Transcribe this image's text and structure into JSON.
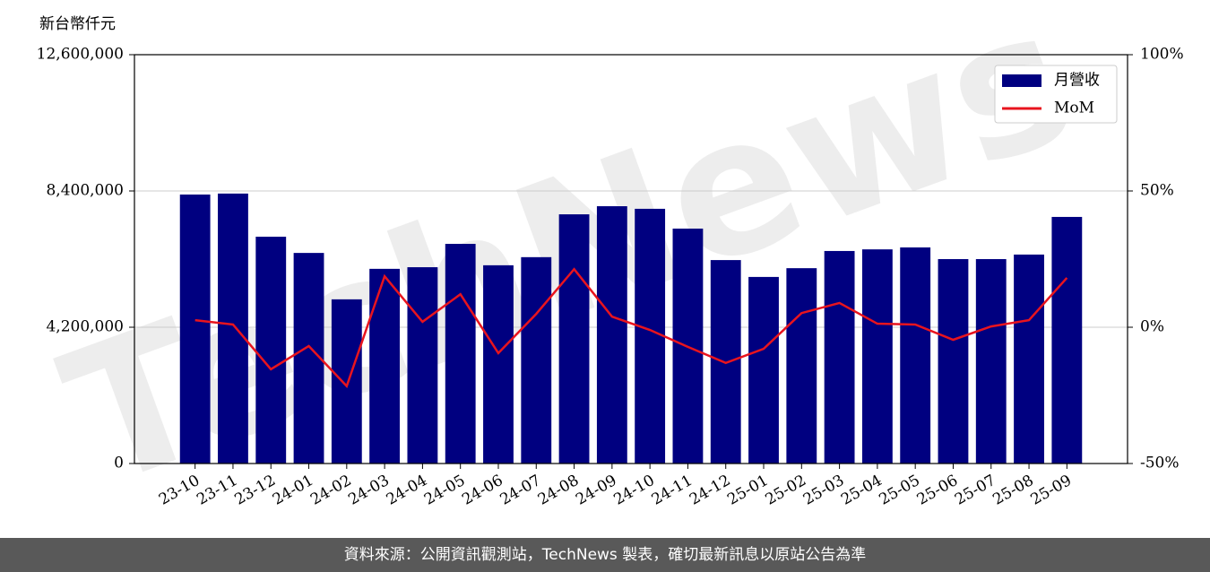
{
  "chart_data": {
    "type": "bar_line",
    "ylabel": "新台幣仟元",
    "watermark": "TechNews",
    "footer": "資料來源：公開資訊觀測站，TechNews 製表，確切最新訊息以原站公告為準",
    "categories": [
      "23-10",
      "23-11",
      "23-12",
      "24-01",
      "24-02",
      "24-03",
      "24-04",
      "24-05",
      "24-06",
      "24-07",
      "24-08",
      "24-09",
      "24-10",
      "24-11",
      "24-12",
      "25-01",
      "25-02",
      "25-03",
      "25-04",
      "25-05",
      "25-06",
      "25-07",
      "25-08",
      "25-09"
    ],
    "series": [
      {
        "name": "月營收",
        "type": "bar",
        "color": "#000080",
        "values": [
          8290000,
          8320000,
          6990000,
          6490000,
          5060000,
          6000000,
          6050000,
          6770000,
          6110000,
          6360000,
          7680000,
          7930000,
          7850000,
          7240000,
          6270000,
          5750000,
          6020000,
          6550000,
          6600000,
          6660000,
          6300000,
          6300000,
          6440000,
          7600000
        ]
      },
      {
        "name": "MoM",
        "type": "line",
        "axis": "y2",
        "color": "#e8141e",
        "values": [
          2.6,
          1,
          -15.4,
          -6.9,
          -21.6,
          18.7,
          2,
          12.1,
          -9.5,
          4.9,
          21.3,
          3.9,
          -1,
          -7.2,
          -13.1,
          -7.9,
          5.2,
          8.9,
          1.3,
          1,
          -4.6,
          0.3,
          2.6,
          18.1
        ]
      }
    ],
    "ylim": [
      0,
      12600000
    ],
    "yticks": [
      0,
      {
        "value": 4200000,
        "label": "4,200,000"
      },
      {
        "value": 8400000,
        "label": "8,400,000"
      },
      {
        "value": 12600000,
        "label": "12,600,000"
      }
    ],
    "y2lim": [
      -50,
      100
    ],
    "y2ticks": [
      {
        "value": -50,
        "label": "-50%"
      },
      {
        "value": 0,
        "label": "0%"
      },
      {
        "value": 50,
        "label": "50%"
      },
      {
        "value": 100,
        "label": "100%"
      }
    ],
    "grid": true,
    "legend": "upper right"
  }
}
